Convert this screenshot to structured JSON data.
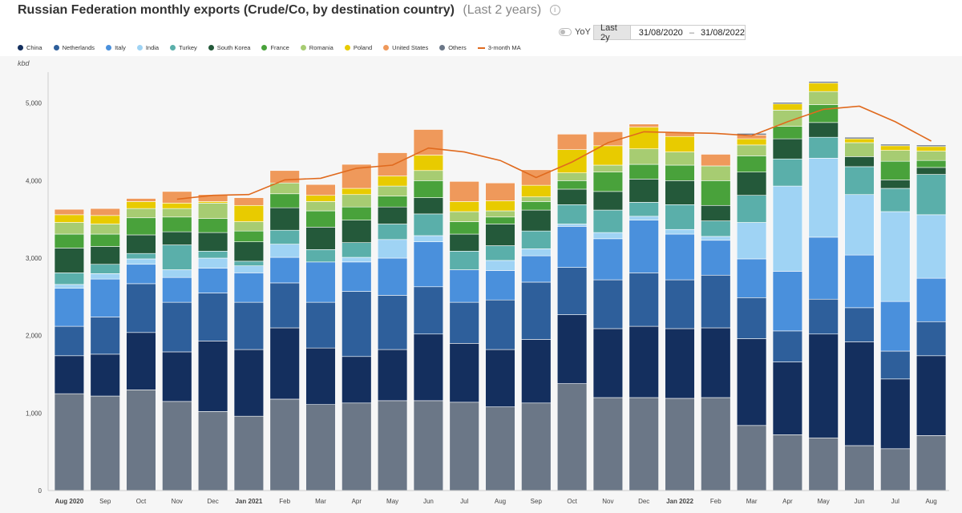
{
  "header": {
    "title": "Russian Federation monthly exports (Crude/Co, by destination country)",
    "subtitle": "(Last 2 years)",
    "info_icon": "info-icon"
  },
  "controls": {
    "yoy_label": "YoY",
    "range_button": "Last 2y",
    "date_from": "31/08/2020",
    "date_sep": "–",
    "date_to": "31/08/2022"
  },
  "chart_data": {
    "type": "bar",
    "stacked": true,
    "ylabel": "kbd",
    "ylim": [
      0,
      5400
    ],
    "yticks": [
      0,
      1000,
      2000,
      3000,
      4000,
      5000
    ],
    "ytick_labels": [
      "0",
      "1,000",
      "2,000",
      "3,000",
      "4,000",
      "5,000"
    ],
    "categories": [
      "Aug 2020",
      "Sep",
      "Oct",
      "Nov",
      "Dec",
      "Jan 2021",
      "Feb",
      "Mar",
      "Apr",
      "May",
      "Jun",
      "Jul",
      "Aug",
      "Sep",
      "Oct",
      "Nov",
      "Dec",
      "Jan 2022",
      "Feb",
      "Mar",
      "Apr",
      "May",
      "Jun",
      "Jul",
      "Aug"
    ],
    "bold_categories": [
      "Aug 2020",
      "Jan 2021",
      "Jan 2022"
    ],
    "legend_position": "top-left",
    "grid": false,
    "series": [
      {
        "name": "Others",
        "color": "#6b7787",
        "values": [
          1250,
          1220,
          1300,
          1150,
          1020,
          960,
          1180,
          1110,
          1130,
          1160,
          1160,
          1140,
          1080,
          1130,
          1380,
          1200,
          1200,
          1190,
          1200,
          840,
          720,
          680,
          580,
          540,
          710
        ]
      },
      {
        "name": "China",
        "color": "#142f5e",
        "values": [
          490,
          540,
          740,
          640,
          910,
          860,
          920,
          730,
          600,
          660,
          860,
          760,
          740,
          820,
          890,
          890,
          920,
          900,
          900,
          1120,
          940,
          1340,
          1340,
          900,
          1030
        ]
      },
      {
        "name": "Netherlands",
        "color": "#2e5f9b",
        "values": [
          380,
          480,
          630,
          640,
          620,
          610,
          580,
          590,
          840,
          700,
          610,
          530,
          640,
          740,
          610,
          630,
          690,
          630,
          680,
          530,
          400,
          450,
          440,
          360,
          440
        ]
      },
      {
        "name": "Italy",
        "color": "#4a90dc",
        "values": [
          490,
          490,
          250,
          320,
          320,
          380,
          330,
          520,
          380,
          480,
          580,
          420,
          380,
          340,
          530,
          530,
          680,
          590,
          450,
          500,
          770,
          800,
          680,
          640,
          560
        ]
      },
      {
        "name": "India",
        "color": "#9fd3f4",
        "values": [
          50,
          70,
          70,
          100,
          130,
          90,
          170,
          0,
          60,
          240,
          80,
          0,
          130,
          90,
          30,
          80,
          50,
          60,
          50,
          470,
          1100,
          1020,
          780,
          1160,
          820
        ]
      },
      {
        "name": "Turkey",
        "color": "#5aafaa",
        "values": [
          150,
          120,
          70,
          320,
          90,
          60,
          180,
          160,
          190,
          200,
          280,
          240,
          190,
          230,
          250,
          290,
          180,
          320,
          200,
          350,
          350,
          270,
          360,
          300,
          520
        ]
      },
      {
        "name": "South Korea",
        "color": "#24593a",
        "values": [
          320,
          230,
          240,
          170,
          240,
          250,
          290,
          290,
          290,
          220,
          210,
          220,
          280,
          270,
          200,
          240,
          300,
          310,
          200,
          300,
          260,
          190,
          130,
          110,
          90
        ]
      },
      {
        "name": "France",
        "color": "#49a23b",
        "values": [
          180,
          160,
          220,
          190,
          180,
          140,
          180,
          210,
          170,
          140,
          220,
          160,
          90,
          110,
          110,
          250,
          190,
          200,
          320,
          210,
          160,
          230,
          0,
          240,
          90
        ]
      },
      {
        "name": "Romania",
        "color": "#a7cc72",
        "values": [
          150,
          130,
          120,
          110,
          200,
          120,
          140,
          120,
          160,
          130,
          130,
          130,
          80,
          60,
          100,
          90,
          200,
          170,
          190,
          140,
          210,
          170,
          180,
          140,
          120
        ]
      },
      {
        "name": "Poland",
        "color": "#e8cb00",
        "values": [
          100,
          110,
          90,
          70,
          20,
          210,
          0,
          80,
          80,
          130,
          200,
          130,
          130,
          150,
          300,
          250,
          280,
          200,
          0,
          80,
          80,
          110,
          50,
          60,
          60
        ]
      },
      {
        "name": "United States",
        "color": "#ef995b",
        "values": [
          70,
          90,
          40,
          150,
          90,
          100,
          160,
          140,
          310,
          300,
          330,
          260,
          230,
          200,
          200,
          180,
          40,
          50,
          150,
          50,
          0,
          0,
          0,
          0,
          0
        ]
      },
      {
        "name": "Others (top)",
        "color": "#6b7787",
        "values": [
          0,
          0,
          0,
          0,
          0,
          0,
          0,
          0,
          0,
          0,
          0,
          0,
          0,
          0,
          0,
          0,
          0,
          0,
          0,
          20,
          20,
          20,
          20,
          20,
          20
        ]
      }
    ],
    "moving_average": {
      "name": "3-month MA",
      "color": "#e06a1e",
      "start_index": 3,
      "values": [
        null,
        null,
        null,
        3760,
        3810,
        3820,
        4010,
        4030,
        4160,
        4200,
        4420,
        4370,
        4260,
        4040,
        4240,
        4490,
        4630,
        4620,
        4610,
        4580,
        4760,
        4920,
        4960,
        4760,
        4510
      ]
    }
  },
  "legend": [
    {
      "label": "China",
      "color": "#142f5e",
      "kind": "dot"
    },
    {
      "label": "Netherlands",
      "color": "#2e5f9b",
      "kind": "dot"
    },
    {
      "label": "Italy",
      "color": "#4a90dc",
      "kind": "dot"
    },
    {
      "label": "India",
      "color": "#9fd3f4",
      "kind": "dot"
    },
    {
      "label": "Turkey",
      "color": "#5aafaa",
      "kind": "dot"
    },
    {
      "label": "South Korea",
      "color": "#24593a",
      "kind": "dot"
    },
    {
      "label": "France",
      "color": "#49a23b",
      "kind": "dot"
    },
    {
      "label": "Romania",
      "color": "#a7cc72",
      "kind": "dot"
    },
    {
      "label": "Poland",
      "color": "#e8cb00",
      "kind": "dot"
    },
    {
      "label": "United States",
      "color": "#ef995b",
      "kind": "dot"
    },
    {
      "label": "Others",
      "color": "#6b7787",
      "kind": "dot"
    },
    {
      "label": "3-month MA",
      "color": "#e06a1e",
      "kind": "line"
    }
  ]
}
